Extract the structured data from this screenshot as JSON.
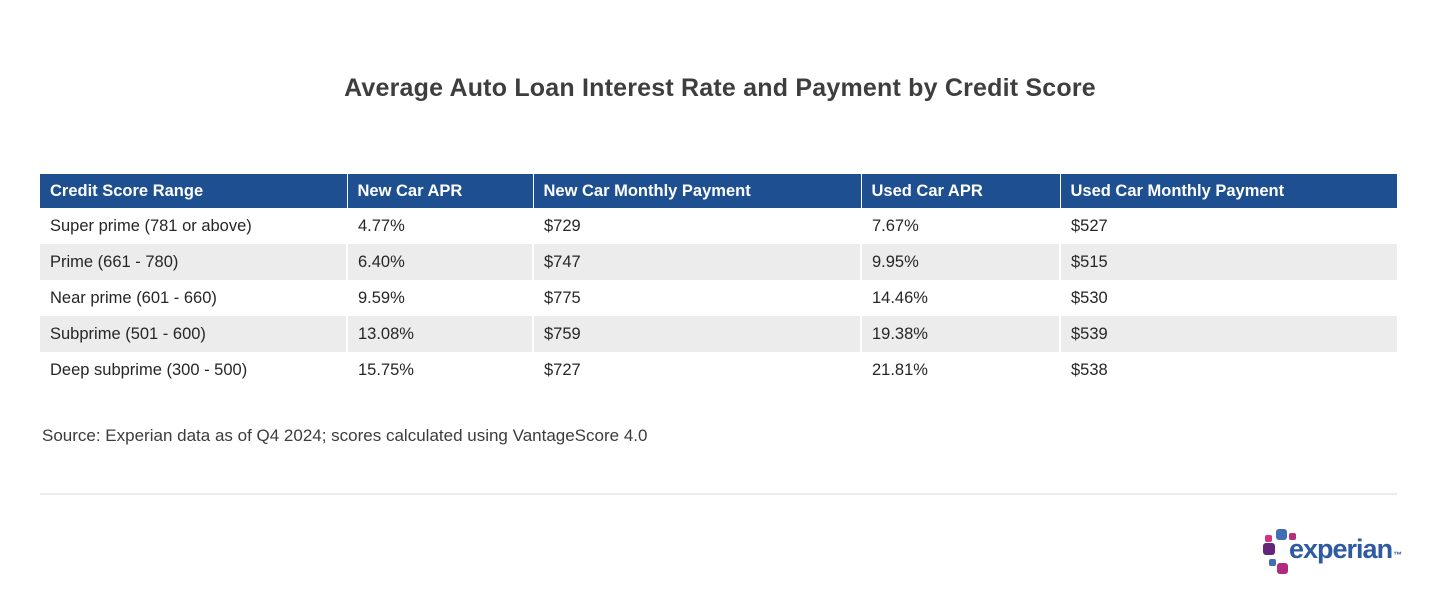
{
  "page": {
    "title": "Average Auto Loan Interest Rate and Payment by Credit Score",
    "source_note": "Source: Experian data as of Q4 2024; scores calculated using VantageScore 4.0"
  },
  "chart_data": {
    "type": "table",
    "title": "Average Auto Loan Interest Rate and Payment by Credit Score",
    "columns": [
      "Credit Score Range",
      "New Car APR",
      "New Car Monthly Payment",
      "Used Car APR",
      "Used Car Monthly Payment"
    ],
    "rows": [
      [
        "Super prime (781 or above)",
        "4.77%",
        "$729",
        "7.67%",
        "$527"
      ],
      [
        "Prime (661 - 780)",
        "6.40%",
        "$747",
        "9.95%",
        "$515"
      ],
      [
        "Near prime (601 - 660)",
        "9.59%",
        "$775",
        "14.46%",
        "$530"
      ],
      [
        "Subprime (501 - 600)",
        "13.08%",
        "$759",
        "19.38%",
        "$539"
      ],
      [
        "Deep subprime (300 - 500)",
        "15.75%",
        "$727",
        "21.81%",
        "$538"
      ]
    ],
    "source_note": "Source: Experian data as of Q4 2024; scores calculated using VantageScore 4.0",
    "legend_position": "none",
    "grid": false
  },
  "colors": {
    "header_bg": "#1d4f91",
    "header_text": "#ffffff",
    "stripe_bg": "#ececec",
    "logo_text": "#2d5aa0"
  },
  "logo": {
    "text": "experian",
    "trademark": "™",
    "squares": [
      {
        "name": "blue-medium",
        "color": "#3f6eb5"
      },
      {
        "name": "pink-left",
        "color": "#d5327f"
      },
      {
        "name": "pink-right",
        "color": "#b52f7e"
      },
      {
        "name": "purple-large",
        "color": "#632678"
      },
      {
        "name": "blue-small",
        "color": "#3f6eb5"
      },
      {
        "name": "magenta",
        "color": "#b02a80"
      }
    ]
  }
}
